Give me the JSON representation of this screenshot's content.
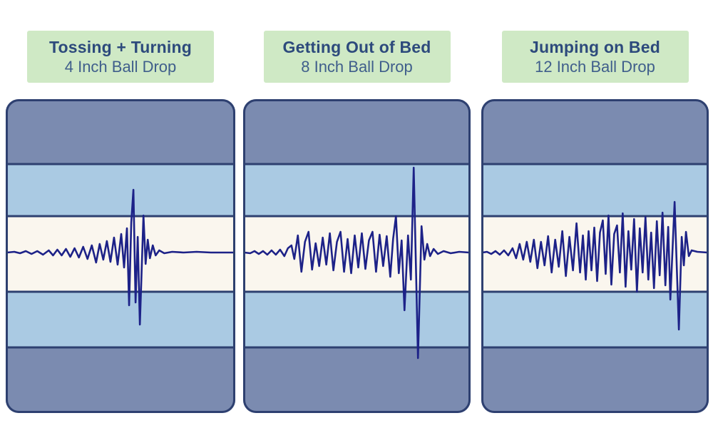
{
  "colors": {
    "page_bg": "#ffffff",
    "header_bg": "#cfe9c5",
    "title_text": "#2d4a7c",
    "subtitle_text": "#3f5e8b",
    "panel_border": "#2e4070",
    "band_dark": "#7b8bb0",
    "band_light": "#aacae3",
    "band_cream": "#faf6ee",
    "waveform": "#1d2288"
  },
  "panels": [
    {
      "title": "Tossing + Turning",
      "subtitle": "4 Inch Ball Drop"
    },
    {
      "title": "Getting Out of Bed",
      "subtitle": "8 Inch Ball Drop"
    },
    {
      "title": "Jumping on Bed",
      "subtitle": "12 Inch Ball Drop"
    }
  ],
  "chart_data": {
    "type": "line",
    "x_range": [
      0,
      320
    ],
    "baseline_y": 215,
    "amplitude_note": "points are [x, amplitude]; amplitude is px deviation from baseline, positive = upward",
    "band_boundaries_y": [
      91,
      164,
      270,
      348
    ],
    "grid": false,
    "legend": "none",
    "series": [
      {
        "name": "Tossing + Turning — 4 Inch Ball Drop",
        "points": [
          [
            2,
            0
          ],
          [
            12,
            1
          ],
          [
            20,
            -1
          ],
          [
            28,
            2
          ],
          [
            36,
            -2
          ],
          [
            44,
            2
          ],
          [
            52,
            -3
          ],
          [
            60,
            3
          ],
          [
            66,
            -4
          ],
          [
            72,
            4
          ],
          [
            78,
            -4
          ],
          [
            84,
            5
          ],
          [
            90,
            -6
          ],
          [
            96,
            6
          ],
          [
            102,
            -7
          ],
          [
            108,
            8
          ],
          [
            114,
            -9
          ],
          [
            120,
            10
          ],
          [
            126,
            -14
          ],
          [
            131,
            12
          ],
          [
            136,
            -10
          ],
          [
            141,
            16
          ],
          [
            146,
            -13
          ],
          [
            151,
            21
          ],
          [
            156,
            -17
          ],
          [
            161,
            26
          ],
          [
            165,
            -21
          ],
          [
            169,
            34
          ],
          [
            172,
            -74
          ],
          [
            175,
            42
          ],
          [
            178,
            88
          ],
          [
            181,
            -70
          ],
          [
            184,
            22
          ],
          [
            187,
            -101
          ],
          [
            192,
            52
          ],
          [
            195,
            -16
          ],
          [
            198,
            18
          ],
          [
            201,
            -8
          ],
          [
            205,
            10
          ],
          [
            209,
            -4
          ],
          [
            214,
            3
          ],
          [
            221,
            -1
          ],
          [
            232,
            1
          ],
          [
            248,
            0
          ],
          [
            266,
            1
          ],
          [
            286,
            0
          ],
          [
            318,
            0
          ]
        ]
      },
      {
        "name": "Getting Out of Bed — 8 Inch Ball Drop",
        "points": [
          [
            2,
            0
          ],
          [
            10,
            -1
          ],
          [
            16,
            2
          ],
          [
            22,
            -2
          ],
          [
            28,
            2
          ],
          [
            34,
            -3
          ],
          [
            40,
            3
          ],
          [
            46,
            -3
          ],
          [
            52,
            4
          ],
          [
            58,
            -5
          ],
          [
            63,
            6
          ],
          [
            68,
            10
          ],
          [
            72,
            -9
          ],
          [
            77,
            24
          ],
          [
            82,
            -27
          ],
          [
            87,
            15
          ],
          [
            92,
            29
          ],
          [
            97,
            -24
          ],
          [
            102,
            13
          ],
          [
            107,
            -19
          ],
          [
            112,
            21
          ],
          [
            117,
            -17
          ],
          [
            122,
            27
          ],
          [
            127,
            -25
          ],
          [
            132,
            15
          ],
          [
            137,
            29
          ],
          [
            142,
            -27
          ],
          [
            147,
            19
          ],
          [
            152,
            -29
          ],
          [
            157,
            24
          ],
          [
            162,
            -21
          ],
          [
            167,
            27
          ],
          [
            172,
            -23
          ],
          [
            177,
            17
          ],
          [
            182,
            29
          ],
          [
            187,
            -27
          ],
          [
            192,
            25
          ],
          [
            197,
            -19
          ],
          [
            202,
            23
          ],
          [
            207,
            -34
          ],
          [
            211,
            19
          ],
          [
            215,
            51
          ],
          [
            219,
            -29
          ],
          [
            223,
            17
          ],
          [
            227,
            -81
          ],
          [
            232,
            24
          ],
          [
            236,
            -38
          ],
          [
            240,
            119
          ],
          [
            246,
            -148
          ],
          [
            251,
            37
          ],
          [
            255,
            -10
          ],
          [
            259,
            12
          ],
          [
            263,
            -5
          ],
          [
            268,
            5
          ],
          [
            274,
            -2
          ],
          [
            282,
            2
          ],
          [
            292,
            -1
          ],
          [
            304,
            1
          ],
          [
            318,
            0
          ]
        ]
      },
      {
        "name": "Jumping on Bed — 12 Inch Ball Drop",
        "points": [
          [
            2,
            0
          ],
          [
            8,
            1
          ],
          [
            14,
            -2
          ],
          [
            20,
            2
          ],
          [
            26,
            -3
          ],
          [
            32,
            3
          ],
          [
            38,
            -4
          ],
          [
            44,
            6
          ],
          [
            49,
            -8
          ],
          [
            54,
            12
          ],
          [
            59,
            -10
          ],
          [
            64,
            15
          ],
          [
            69,
            -13
          ],
          [
            74,
            18
          ],
          [
            79,
            -22
          ],
          [
            84,
            15
          ],
          [
            89,
            -18
          ],
          [
            94,
            23
          ],
          [
            99,
            -28
          ],
          [
            104,
            18
          ],
          [
            109,
            -20
          ],
          [
            114,
            30
          ],
          [
            119,
            -33
          ],
          [
            124,
            22
          ],
          [
            129,
            -25
          ],
          [
            134,
            41
          ],
          [
            139,
            -28
          ],
          [
            143,
            24
          ],
          [
            147,
            -38
          ],
          [
            151,
            30
          ],
          [
            155,
            -25
          ],
          [
            159,
            35
          ],
          [
            163,
            -40
          ],
          [
            167,
            28
          ],
          [
            171,
            45
          ],
          [
            175,
            -30
          ],
          [
            179,
            52
          ],
          [
            183,
            -45
          ],
          [
            187,
            26
          ],
          [
            191,
            38
          ],
          [
            195,
            -28
          ],
          [
            199,
            55
          ],
          [
            203,
            -48
          ],
          [
            207,
            30
          ],
          [
            211,
            -24
          ],
          [
            215,
            47
          ],
          [
            219,
            -55
          ],
          [
            223,
            34
          ],
          [
            227,
            -28
          ],
          [
            231,
            50
          ],
          [
            235,
            -38
          ],
          [
            239,
            28
          ],
          [
            243,
            -50
          ],
          [
            247,
            44
          ],
          [
            251,
            -32
          ],
          [
            255,
            56
          ],
          [
            259,
            -46
          ],
          [
            263,
            36
          ],
          [
            266,
            -66
          ],
          [
            272,
            71
          ],
          [
            278,
            -108
          ],
          [
            282,
            22
          ],
          [
            285,
            -18
          ],
          [
            288,
            29
          ],
          [
            292,
            -5
          ],
          [
            296,
            3
          ],
          [
            304,
            1
          ],
          [
            318,
            0
          ]
        ]
      }
    ]
  }
}
